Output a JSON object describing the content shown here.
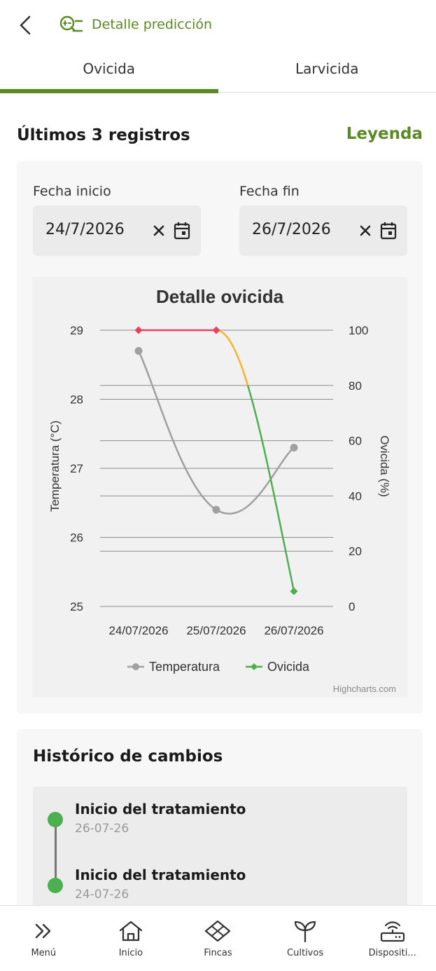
{
  "header": {
    "back_icon": "chevron-left-icon",
    "title_icon": "prediction-search-icon",
    "title": "Detalle predicción",
    "accent_color": "#5a8a23"
  },
  "tabs": [
    {
      "label": "Ovicida",
      "active": true
    },
    {
      "label": "Larvicida",
      "active": false
    }
  ],
  "records": {
    "title": "Últimos 3 registros",
    "legend_link": "Leyenda"
  },
  "filters": {
    "start_label": "Fecha inicio",
    "start_value": "24/7/2026",
    "end_label": "Fecha fin",
    "end_value": "26/7/2026"
  },
  "chart_data": {
    "type": "line",
    "title": "Detalle ovicida",
    "categories": [
      "24/07/2026",
      "25/07/2026",
      "26/07/2026"
    ],
    "y_left": {
      "label": "Temperatura (°C)",
      "min": 25,
      "max": 29,
      "ticks": [
        "25",
        "26",
        "27",
        "28",
        "29"
      ]
    },
    "y_right": {
      "label": "Ovicida (%)",
      "min": 0,
      "max": 100,
      "ticks": [
        "0",
        "20",
        "40",
        "60",
        "80",
        "100"
      ]
    },
    "series": [
      {
        "name": "Temperatura",
        "axis": "left",
        "values": [
          28.7,
          26.4,
          27.3
        ],
        "color": "#a0a0a0",
        "marker": "circle"
      },
      {
        "name": "Ovicida",
        "axis": "right",
        "values": [
          100,
          100,
          5.5
        ],
        "color": "#4caf50",
        "marker": "diamond",
        "zone_colors": {
          "high": "#e8425f",
          "mid": "#f7b52b",
          "low": "#4caf50"
        }
      }
    ],
    "credits": "Highcharts.com",
    "legend_position": "bottom-center"
  },
  "history": {
    "title": "Histórico de cambios",
    "items": [
      {
        "title": "Inicio del tratamiento",
        "date": "26-07-26"
      },
      {
        "title": "Inicio del tratamiento",
        "date": "24-07-26"
      }
    ]
  },
  "nav": [
    {
      "label": "Menú",
      "icon": "double-chevron-right-icon"
    },
    {
      "label": "Inicio",
      "icon": "home-icon"
    },
    {
      "label": "Fincas",
      "icon": "field-icon"
    },
    {
      "label": "Cultivos",
      "icon": "sprout-icon"
    },
    {
      "label": "Dispositi...",
      "icon": "router-icon"
    }
  ]
}
